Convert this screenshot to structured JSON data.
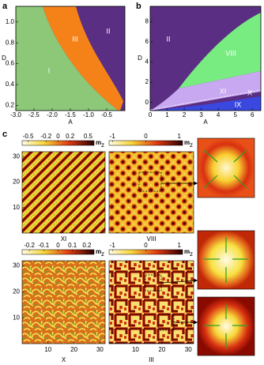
{
  "panels": {
    "a": {
      "label": "a",
      "xlabel": "A",
      "ylabel": "D",
      "xlim": [
        -3,
        0
      ],
      "ylim": [
        0.15,
        1.15
      ],
      "xticks": [
        {
          "value": -3,
          "label": "-3.0"
        },
        {
          "value": -2.5,
          "label": "-2.5"
        },
        {
          "value": -2,
          "label": "-2.0"
        },
        {
          "value": -1.5,
          "label": "-1.5"
        },
        {
          "value": -1,
          "label": "-1.0"
        },
        {
          "value": -0.5,
          "label": "-0.5"
        }
      ],
      "yticks": [
        0.2,
        0.4,
        0.6,
        0.8,
        {
          "value": 1,
          "label": "1.0"
        }
      ],
      "regions": [
        "I",
        "III",
        "II"
      ]
    },
    "b": {
      "label": "b",
      "xlabel": "A",
      "ylabel": "D",
      "xlim": [
        0,
        6.5
      ],
      "ylim": [
        -0.8,
        9.5
      ],
      "xticks": [
        0,
        1,
        2,
        3,
        4,
        5,
        6
      ],
      "yticks": [
        0,
        2,
        4,
        6,
        8
      ],
      "regions": [
        "II",
        "VIII",
        "XI",
        "X",
        "IX"
      ]
    },
    "c": {
      "label": "c",
      "map_ylim": [
        0,
        32
      ],
      "map_xlim": [
        0,
        32
      ],
      "yticks": [
        10,
        20,
        30
      ],
      "xticks": [
        10,
        20,
        30
      ],
      "maps": [
        {
          "label": "XI",
          "cbar_range": [
            -0.6,
            0.6
          ],
          "cbar_ticks": [
            -0.5,
            -0.2,
            0,
            0.2,
            0.5
          ],
          "unit": "m",
          "unit_sub": "z"
        },
        {
          "label": "VIII",
          "cbar_range": [
            -1.1,
            1.1
          ],
          "cbar_ticks": [
            -1,
            0,
            1
          ],
          "unit": "m",
          "unit_sub": "z"
        },
        {
          "label": "X",
          "cbar_range": [
            -0.25,
            0.25
          ],
          "cbar_ticks": [
            -0.2,
            -0.1,
            0,
            0.1,
            0.2
          ],
          "unit": "m",
          "unit_sub": "z"
        },
        {
          "label": "III",
          "cbar_range": [
            -1.1,
            1.1
          ],
          "cbar_ticks": [
            -1,
            0,
            1
          ],
          "unit": "m",
          "unit_sub": "z"
        }
      ]
    }
  }
}
